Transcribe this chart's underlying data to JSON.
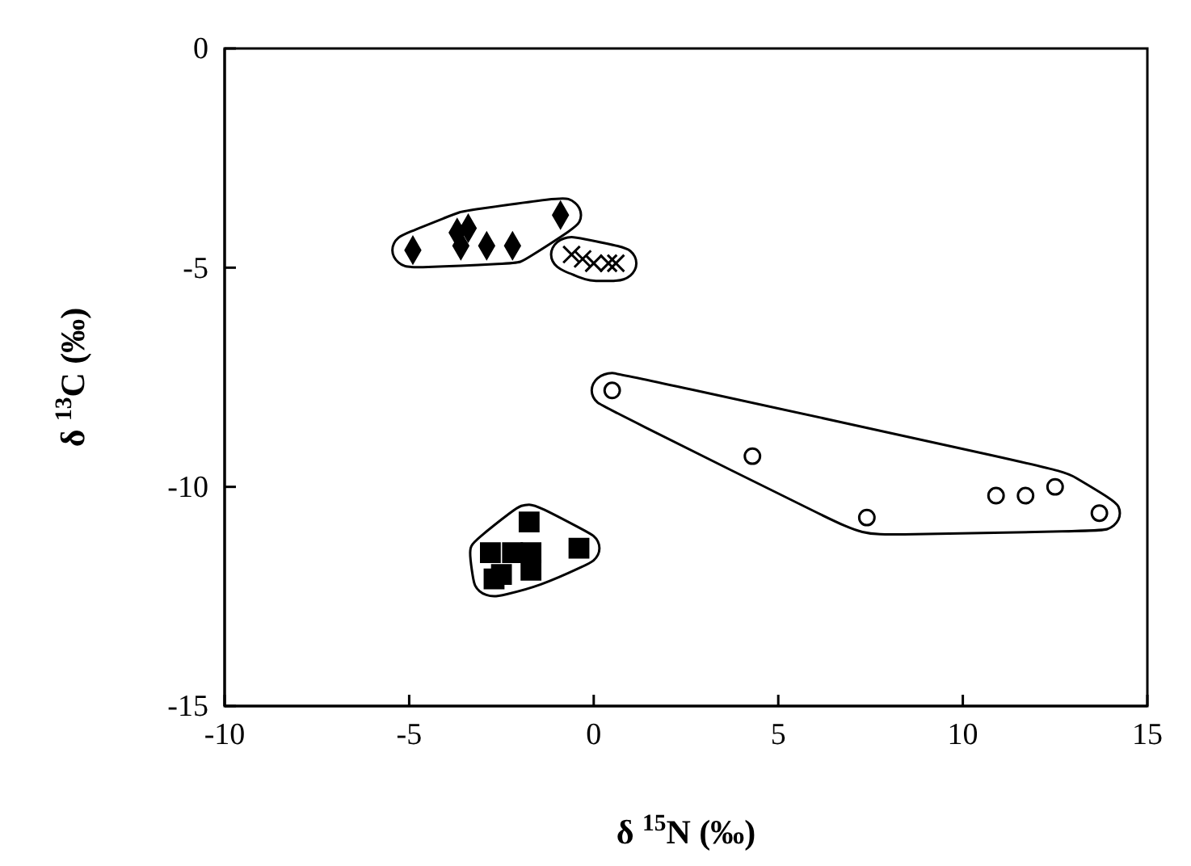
{
  "chart_data": {
    "type": "scatter",
    "xlabel": "δ $^{15}$N (‰)",
    "ylabel": "δ $^{13}$C (‰)",
    "xlim": [
      -10,
      15
    ],
    "ylim": [
      -15,
      0
    ],
    "xticks": [
      -10,
      -5,
      0,
      5,
      10,
      15
    ],
    "yticks": [
      -15,
      -10,
      -5,
      0
    ],
    "grid": false,
    "series": [
      {
        "color": "#000000",
        "marker": "diamond",
        "x": [
          -4.9,
          -3.6,
          -3.7,
          -3.4,
          -2.9,
          -2.2,
          -0.9
        ],
        "values": [
          -4.6,
          -4.5,
          -4.2,
          -4.1,
          -4.5,
          -4.5,
          -3.8
        ]
      },
      {
        "color": "#000000",
        "marker": "cross",
        "x": [
          -0.6,
          -0.3,
          0,
          0.4,
          0.6
        ],
        "values": [
          -4.7,
          -4.8,
          -4.9,
          -4.9,
          -4.9
        ]
      },
      {
        "color": "#000000",
        "marker": "circle",
        "x": [
          0.5,
          4.3,
          7.4,
          10.9,
          11.7,
          12.5,
          13.7
        ],
        "values": [
          -7.8,
          -9.3,
          -10.7,
          -10.2,
          -10.2,
          -10.0,
          -10.6
        ]
      },
      {
        "color": "#000000",
        "marker": "square",
        "x": [
          -1.75,
          -0.4,
          -2.8,
          -2.2,
          -1.7,
          -2.5,
          -2.7,
          -1.7
        ],
        "values": [
          -10.8,
          -11.4,
          -11.5,
          -11.5,
          -11.5,
          -12.0,
          -12.1,
          -11.9
        ]
      }
    ]
  }
}
